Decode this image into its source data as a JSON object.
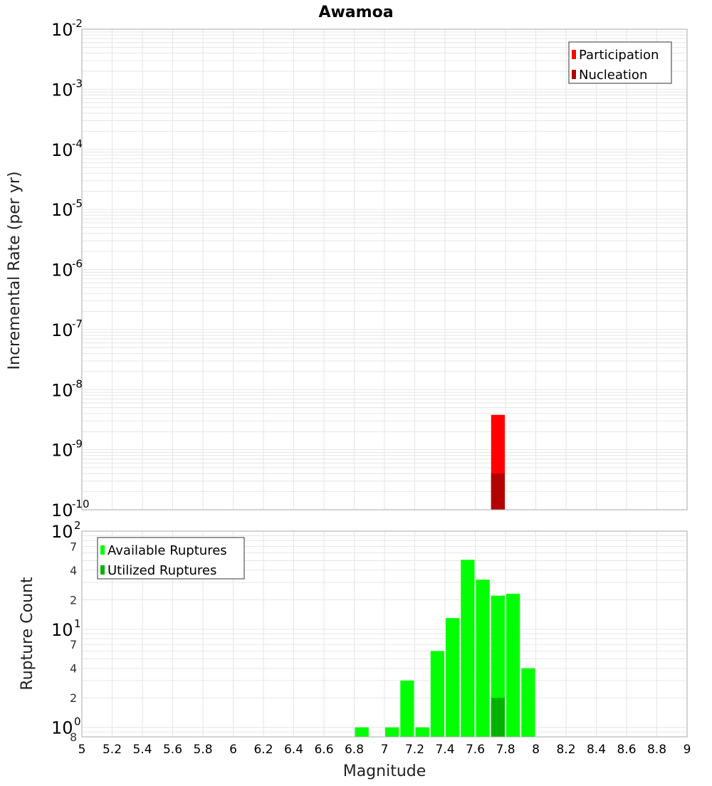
{
  "title": "Awamoa",
  "colors": {
    "participation": "#ff0000",
    "nucleation": "#b30000",
    "available": "#00ff00",
    "utilized": "#00b300",
    "grid": "#e6e6e6",
    "plot_border": "#aaaaaa"
  },
  "chart_data": [
    {
      "type": "bar",
      "title": "Awamoa",
      "xlabel": "Magnitude",
      "ylabel": "Incremental Rate (per yr)",
      "y_scale": "log",
      "xlim": [
        5,
        9
      ],
      "ylim": [
        1e-10,
        0.01
      ],
      "x_ticks": [
        "5",
        "5.2",
        "5.4",
        "5.6",
        "5.8",
        "6",
        "6.2",
        "6.4",
        "6.6",
        "6.8",
        "7",
        "7.2",
        "7.4",
        "7.6",
        "7.8",
        "8",
        "8.2",
        "8.4",
        "8.6",
        "8.8",
        "9"
      ],
      "y_tick_labels": [
        {
          "base": "10",
          "exp": "-2"
        },
        {
          "base": "10",
          "exp": "-3"
        },
        {
          "base": "10",
          "exp": "-4"
        },
        {
          "base": "10",
          "exp": "-5"
        },
        {
          "base": "10",
          "exp": "-6"
        },
        {
          "base": "10",
          "exp": "-7"
        },
        {
          "base": "10",
          "exp": "-8"
        },
        {
          "base": "10",
          "exp": "-9"
        },
        {
          "base": "10",
          "exp": "-10"
        }
      ],
      "grid": true,
      "legend": "top-right",
      "bin_width": 0.1,
      "series": [
        {
          "name": "Participation",
          "x": [
            7.75
          ],
          "values": [
            3.8e-09
          ]
        },
        {
          "name": "Nucleation",
          "x": [
            7.75
          ],
          "values": [
            4e-10
          ]
        }
      ]
    },
    {
      "type": "bar",
      "xlabel": "Magnitude",
      "ylabel": "Rupture Count",
      "y_scale": "log",
      "xlim": [
        5,
        9
      ],
      "ylim": [
        0.8,
        100
      ],
      "y_tick_labels": [
        {
          "base": "10",
          "exp": "2"
        },
        {
          "base": "10",
          "exp": "1"
        },
        {
          "base": "10",
          "exp": "0"
        }
      ],
      "y_minor_labels": [
        {
          "label": "7",
          "value": 70
        },
        {
          "label": "4",
          "value": 40
        },
        {
          "label": "2",
          "value": 20
        },
        {
          "label": "7",
          "value": 7
        },
        {
          "label": "4",
          "value": 4
        },
        {
          "label": "2",
          "value": 2
        },
        {
          "label": "8",
          "value": 0.8
        }
      ],
      "grid": true,
      "legend": "top-left",
      "bin_width": 0.1,
      "x": [
        6.85,
        7.05,
        7.15,
        7.25,
        7.35,
        7.45,
        7.55,
        7.65,
        7.75,
        7.85,
        7.95
      ],
      "series": [
        {
          "name": "Available Ruptures",
          "values": [
            1,
            1,
            3,
            1,
            6,
            13,
            51,
            32,
            22,
            23,
            4
          ]
        },
        {
          "name": "Utilized Ruptures",
          "values": [
            0,
            0,
            0,
            0,
            0,
            0,
            0,
            0,
            2,
            0,
            0
          ]
        }
      ]
    }
  ]
}
